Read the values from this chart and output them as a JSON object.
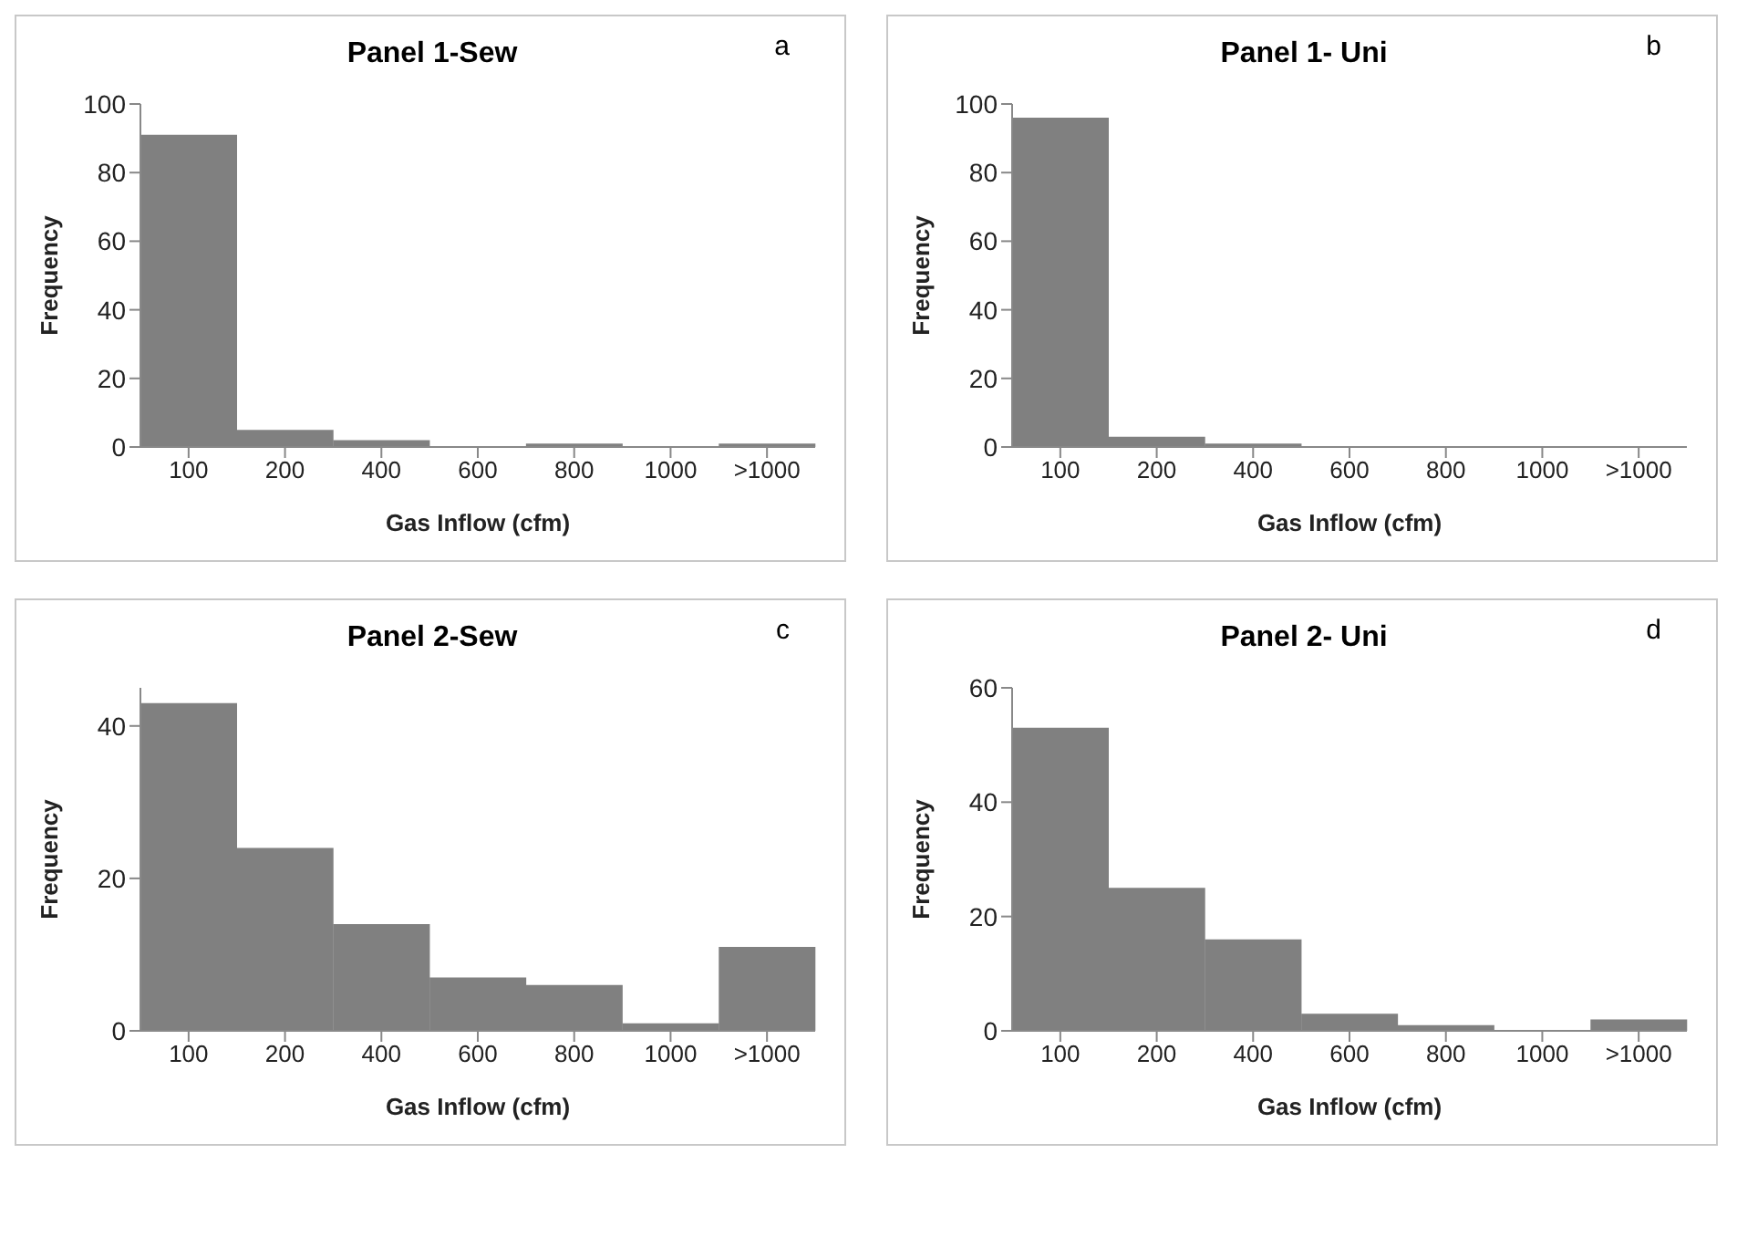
{
  "chart_data": [
    {
      "type": "bar",
      "title": "Panel 1-Sew",
      "xlabel": "Gas Inflow (cfm)",
      "ylabel": "Frequency",
      "annotations": [
        "a"
      ],
      "categories": [
        "100",
        "200",
        "400",
        "600",
        "800",
        "1000",
        ">1000"
      ],
      "values": [
        91,
        5,
        2,
        0,
        1,
        0,
        1
      ],
      "color": "#808080",
      "ylim": [
        0,
        100
      ],
      "yticks": [
        0,
        20,
        40,
        60,
        80,
        100
      ],
      "grid": false,
      "legend": false
    },
    {
      "type": "bar",
      "title": "Panel 1- Uni",
      "xlabel": "Gas Inflow (cfm)",
      "ylabel": "Frequency",
      "annotations": [
        "b"
      ],
      "categories": [
        "100",
        "200",
        "400",
        "600",
        "800",
        "1000",
        ">1000"
      ],
      "values": [
        96,
        3,
        1,
        0,
        0,
        0,
        0
      ],
      "color": "#808080",
      "ylim": [
        0,
        100
      ],
      "yticks": [
        0,
        20,
        40,
        60,
        80,
        100
      ],
      "grid": false,
      "legend": false
    },
    {
      "type": "bar",
      "title": "Panel 2-Sew",
      "xlabel": "Gas Inflow (cfm)",
      "ylabel": "Frequency",
      "annotations": [
        "c"
      ],
      "categories": [
        "100",
        "200",
        "400",
        "600",
        "800",
        "1000",
        ">1000"
      ],
      "values": [
        43,
        24,
        14,
        7,
        6,
        1,
        11
      ],
      "color": "#808080",
      "ylim": [
        0,
        45
      ],
      "yticks": [
        0,
        20,
        40
      ],
      "grid": false,
      "legend": false
    },
    {
      "type": "bar",
      "title": "Panel 2- Uni",
      "xlabel": "Gas Inflow (cfm)",
      "ylabel": "Frequency",
      "annotations": [
        "d"
      ],
      "categories": [
        "100",
        "200",
        "400",
        "600",
        "800",
        "1000",
        ">1000"
      ],
      "values": [
        53,
        25,
        16,
        3,
        1,
        0,
        2
      ],
      "color": "#808080",
      "ylim": [
        0,
        60
      ],
      "yticks": [
        0,
        20,
        40,
        60
      ],
      "grid": false,
      "legend": false
    }
  ]
}
